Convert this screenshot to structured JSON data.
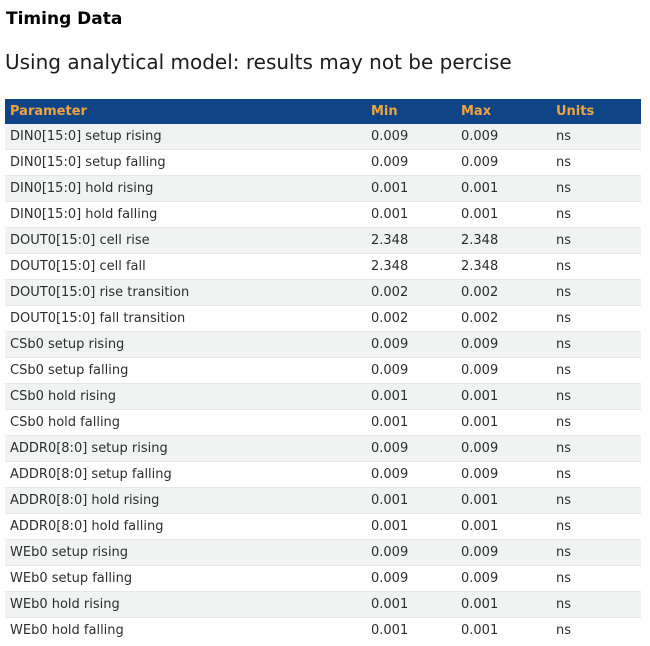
{
  "page": {
    "title": "Timing Data",
    "subtitle": "Using analytical model: results may not be percise"
  },
  "table": {
    "columns": [
      "Parameter",
      "Min",
      "Max",
      "Units"
    ],
    "row_keys": [
      "parameter",
      "min",
      "max",
      "units"
    ],
    "rows": [
      {
        "parameter": "DIN0[15:0] setup rising",
        "min": "0.009",
        "max": "0.009",
        "units": "ns"
      },
      {
        "parameter": "DIN0[15:0] setup falling",
        "min": "0.009",
        "max": "0.009",
        "units": "ns"
      },
      {
        "parameter": "DIN0[15:0] hold rising",
        "min": "0.001",
        "max": "0.001",
        "units": "ns"
      },
      {
        "parameter": "DIN0[15:0] hold falling",
        "min": "0.001",
        "max": "0.001",
        "units": "ns"
      },
      {
        "parameter": "DOUT0[15:0] cell rise",
        "min": "2.348",
        "max": "2.348",
        "units": "ns"
      },
      {
        "parameter": "DOUT0[15:0] cell fall",
        "min": "2.348",
        "max": "2.348",
        "units": "ns"
      },
      {
        "parameter": "DOUT0[15:0] rise transition",
        "min": "0.002",
        "max": "0.002",
        "units": "ns"
      },
      {
        "parameter": "DOUT0[15:0] fall transition",
        "min": "0.002",
        "max": "0.002",
        "units": "ns"
      },
      {
        "parameter": "CSb0 setup rising",
        "min": "0.009",
        "max": "0.009",
        "units": "ns"
      },
      {
        "parameter": "CSb0 setup falling",
        "min": "0.009",
        "max": "0.009",
        "units": "ns"
      },
      {
        "parameter": "CSb0 hold rising",
        "min": "0.001",
        "max": "0.001",
        "units": "ns"
      },
      {
        "parameter": "CSb0 hold falling",
        "min": "0.001",
        "max": "0.001",
        "units": "ns"
      },
      {
        "parameter": "ADDR0[8:0] setup rising",
        "min": "0.009",
        "max": "0.009",
        "units": "ns"
      },
      {
        "parameter": "ADDR0[8:0] setup falling",
        "min": "0.009",
        "max": "0.009",
        "units": "ns"
      },
      {
        "parameter": "ADDR0[8:0] hold rising",
        "min": "0.001",
        "max": "0.001",
        "units": "ns"
      },
      {
        "parameter": "ADDR0[8:0] hold falling",
        "min": "0.001",
        "max": "0.001",
        "units": "ns"
      },
      {
        "parameter": "WEb0 setup rising",
        "min": "0.009",
        "max": "0.009",
        "units": "ns"
      },
      {
        "parameter": "WEb0 setup falling",
        "min": "0.009",
        "max": "0.009",
        "units": "ns"
      },
      {
        "parameter": "WEb0 hold rising",
        "min": "0.001",
        "max": "0.001",
        "units": "ns"
      },
      {
        "parameter": "WEb0 hold falling",
        "min": "0.001",
        "max": "0.001",
        "units": "ns"
      }
    ]
  },
  "colors": {
    "header_bg": "#0f4586",
    "header_accent": "#eda440",
    "row_alt_bg": "#f1f2f2",
    "row_bg": "#ffffff",
    "body_text": "#2d2d2d"
  }
}
